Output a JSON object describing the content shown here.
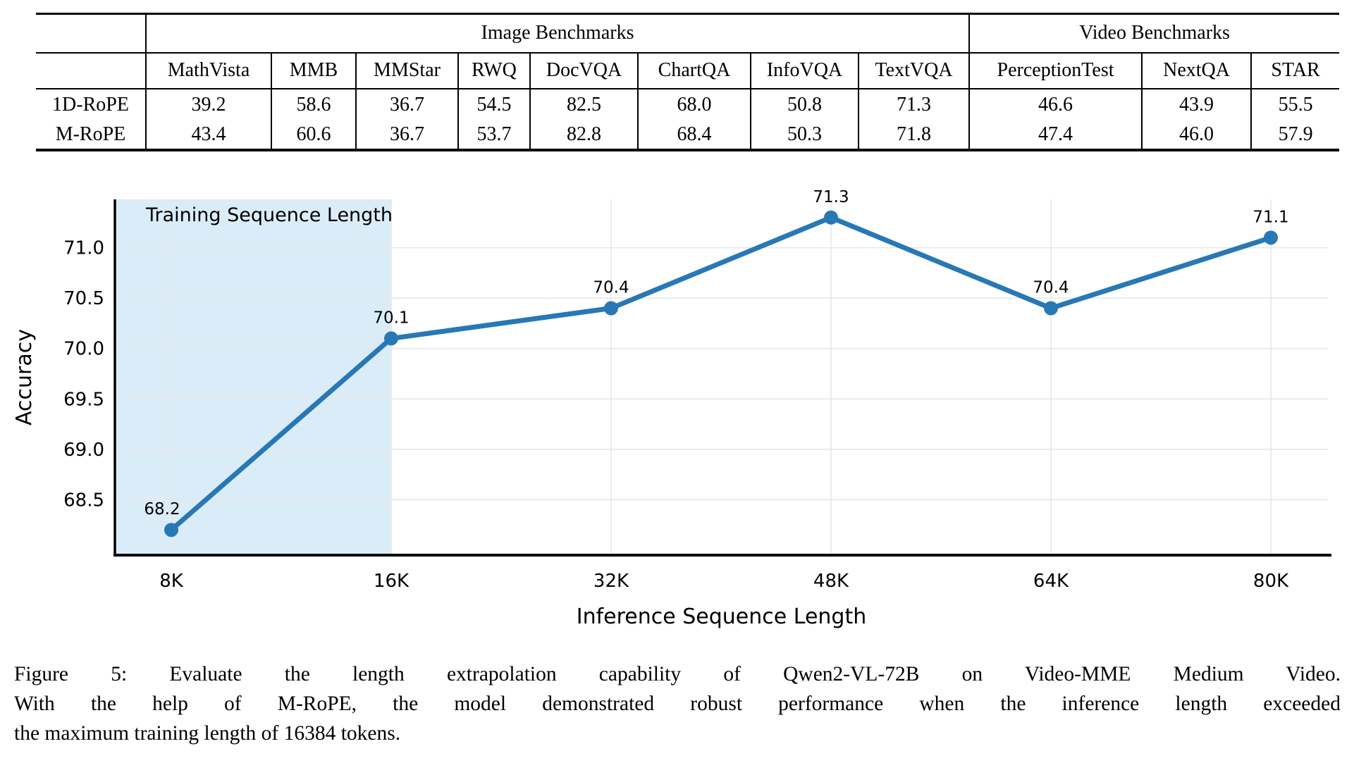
{
  "table": {
    "group_headers": [
      {
        "label": "Image Benchmarks",
        "span": 8
      },
      {
        "label": "Video Benchmarks",
        "span": 3
      }
    ],
    "columns": [
      "MathVista",
      "MMB",
      "MMStar",
      "RWQ",
      "DocVQA",
      "ChartQA",
      "InfoVQA",
      "TextVQA",
      "PerceptionTest",
      "NextQA",
      "STAR"
    ],
    "rows": [
      {
        "label": "1D-RoPE",
        "values": [
          "39.2",
          "58.6",
          "36.7",
          "54.5",
          "82.5",
          "68.0",
          "50.8",
          "71.3",
          "46.6",
          "43.9",
          "55.5"
        ],
        "bold": [
          false,
          false,
          true,
          true,
          false,
          false,
          true,
          false,
          false,
          false,
          false
        ]
      },
      {
        "label": "M-RoPE",
        "values": [
          "43.4",
          "60.6",
          "36.7",
          "53.7",
          "82.8",
          "68.4",
          "50.3",
          "71.8",
          "47.4",
          "46.0",
          "57.9"
        ],
        "bold": [
          true,
          true,
          true,
          false,
          true,
          true,
          false,
          true,
          true,
          true,
          true
        ]
      }
    ]
  },
  "chart_data": {
    "type": "line",
    "title": "",
    "categories": [
      "8K",
      "16K",
      "32K",
      "48K",
      "64K",
      "80K"
    ],
    "values": [
      68.2,
      70.1,
      70.4,
      71.3,
      70.4,
      71.1
    ],
    "point_labels": [
      "68.2",
      "70.1",
      "70.4",
      "71.3",
      "70.4",
      "71.1"
    ],
    "xlabel": "Inference Sequence Length",
    "ylabel": "Accuracy",
    "yticks": [
      "68.5",
      "69.0",
      "69.5",
      "70.0",
      "70.5",
      "71.0"
    ],
    "ylim": [
      67.95,
      71.48
    ],
    "grid": true,
    "legend_position": "none",
    "shaded_region": {
      "label": "Training Sequence Length",
      "to_category": "16K"
    },
    "colors": {
      "line": "#2878b5",
      "shade": "#dbecf9",
      "grid": "#e7e7e7",
      "spine": "#000000"
    }
  },
  "caption": {
    "lines": [
      "Figure 5: Evaluate the length extrapolation capability of Qwen2-VL-72B on Video-MME Medium Video.",
      "With the help of M-RoPE, the model demonstrated robust performance when the inference length exceeded",
      "the maximum training length of 16384 tokens."
    ]
  }
}
